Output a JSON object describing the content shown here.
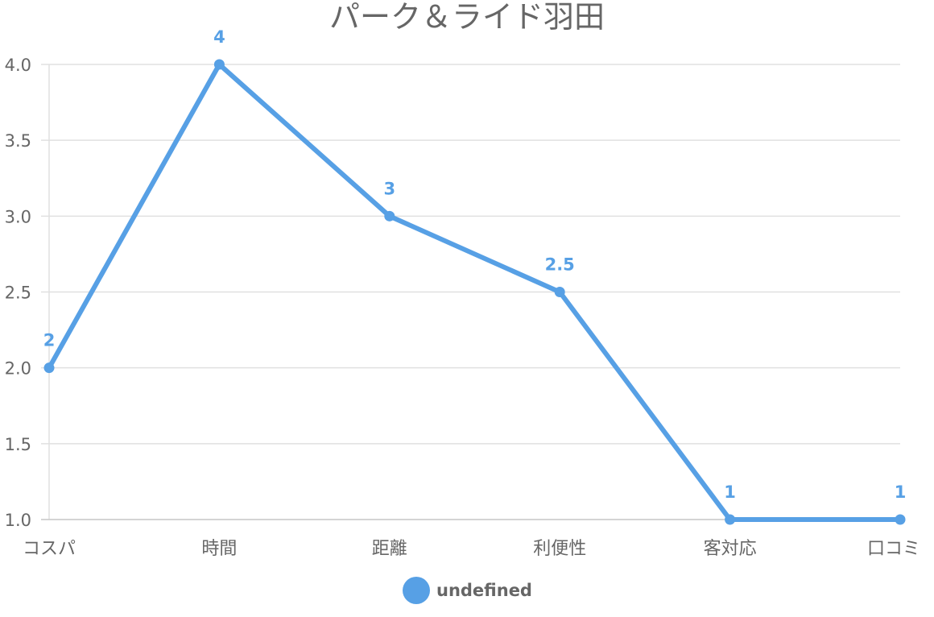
{
  "chart_data": {
    "type": "line",
    "title": "パーク＆ライド羽田",
    "categories": [
      "コスパ",
      "時間",
      "距離",
      "利便性",
      "客対応",
      "口コミ"
    ],
    "series": [
      {
        "name": "undefined",
        "values": [
          2,
          4,
          3,
          2.5,
          1,
          1
        ]
      }
    ],
    "data_labels": [
      "2",
      "4",
      "3",
      "2.5",
      "1",
      "1"
    ],
    "yticks": [
      "1.0",
      "1.5",
      "2.0",
      "2.5",
      "3.0",
      "3.5",
      "4.0"
    ],
    "ylim": [
      1,
      4
    ],
    "grid": true,
    "legend_position": "bottom",
    "colors": {
      "line": "#57a0e5",
      "grid": "#e0e0e0",
      "axis_text": "#666666",
      "title_text": "#666666"
    }
  }
}
